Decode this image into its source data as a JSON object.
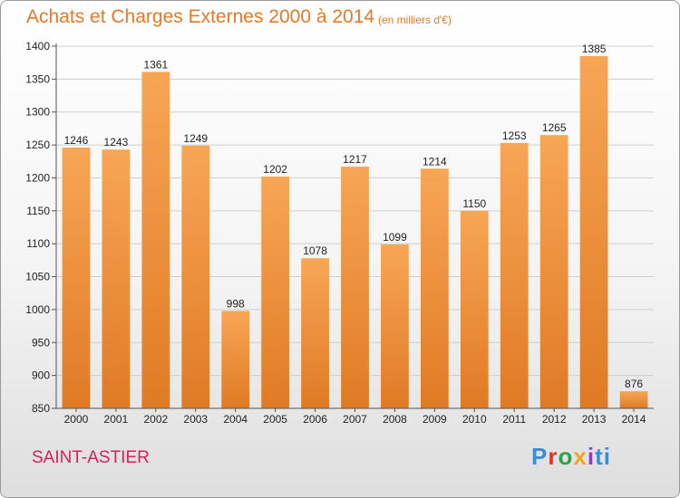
{
  "title": "Achats et Charges Externes 2000 à 2014",
  "subtitle": "(en milliers d'€)",
  "commune": "SAINT-ASTIER",
  "logo": {
    "text": "Proxiti"
  },
  "colors": {
    "title": "#e27a2a",
    "commune": "#d81f5f",
    "bar_top": "#f7a656",
    "bar_bottom": "#e07a24",
    "grid": "#cfcfcf"
  },
  "chart_data": {
    "type": "bar",
    "categories": [
      "2000",
      "2001",
      "2002",
      "2003",
      "2004",
      "2005",
      "2006",
      "2007",
      "2008",
      "2009",
      "2010",
      "2011",
      "2012",
      "2013",
      "2014"
    ],
    "values": [
      1246,
      1243,
      1361,
      1249,
      998,
      1202,
      1078,
      1217,
      1099,
      1214,
      1150,
      1253,
      1265,
      1385,
      876
    ],
    "title": "Achats et Charges Externes 2000 à 2014",
    "ylim": [
      850,
      1400
    ],
    "yticks": [
      850,
      900,
      950,
      1000,
      1050,
      1100,
      1150,
      1200,
      1250,
      1300,
      1350,
      1400
    ],
    "grid": true
  }
}
